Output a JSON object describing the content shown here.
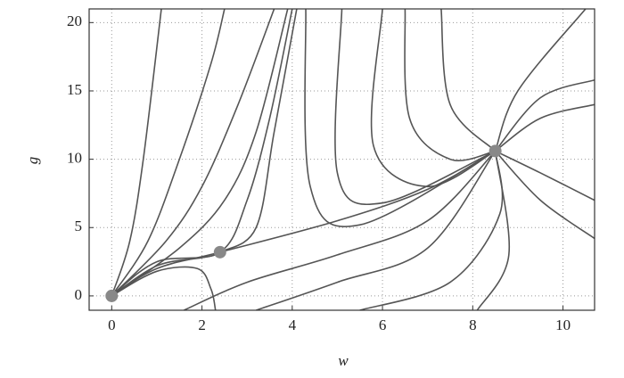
{
  "chart_data": {
    "type": "phase-portrait",
    "x_label": "w",
    "y_label": "g",
    "xlim": [
      -0.5,
      10.7
    ],
    "ylim": [
      -1.05,
      21
    ],
    "xticks": [
      0,
      2,
      4,
      6,
      8,
      10
    ],
    "yticks": [
      0,
      5,
      10,
      15,
      20
    ],
    "grid": true,
    "line_color": "#555555",
    "point_color": "#888888",
    "series": [
      {
        "x": [
          0,
          0.4,
          0.7,
          1.1
        ],
        "values": [
          0,
          4,
          10,
          21
        ]
      },
      {
        "x": [
          0,
          0.8,
          1.5,
          2.2,
          2.5
        ],
        "values": [
          0,
          4,
          10,
          17,
          21
        ]
      },
      {
        "x": [
          0,
          1.2,
          2,
          2.8,
          3.6
        ],
        "values": [
          0,
          4,
          8,
          14,
          21
        ]
      },
      {
        "x": [
          0,
          1.5,
          2.5,
          3.2,
          3.9
        ],
        "values": [
          0,
          3.5,
          7,
          12,
          21
        ]
      },
      {
        "x": [
          0,
          1,
          2.4,
          3,
          3.5,
          4
        ],
        "values": [
          0,
          2.5,
          3.2,
          7,
          13,
          21
        ]
      },
      {
        "x": [
          0,
          1,
          2,
          2.4,
          3.2,
          3.6,
          4.1
        ],
        "values": [
          0,
          2.2,
          2.8,
          3.2,
          5,
          12,
          21
        ]
      },
      {
        "x": [
          0,
          1,
          2.4,
          5,
          7,
          8.5
        ],
        "values": [
          0,
          2,
          3.2,
          5.5,
          7.8,
          10.6
        ]
      },
      {
        "x": [
          0,
          1,
          1.9,
          2.2,
          2.3
        ],
        "values": [
          0,
          1.8,
          2,
          0.5,
          -1.05
        ]
      },
      {
        "x": [
          1.6,
          3,
          5,
          7,
          8.5
        ],
        "values": [
          -1.05,
          1,
          3,
          5.5,
          10.6
        ]
      },
      {
        "x": [
          3.2,
          5,
          7,
          8.5
        ],
        "values": [
          -1.05,
          1,
          3.5,
          10.6
        ]
      },
      {
        "x": [
          5.5,
          7.5,
          8.6,
          8.5
        ],
        "values": [
          -1.05,
          1,
          6,
          10.6
        ]
      },
      {
        "x": [
          8.1,
          8.8,
          8.5
        ],
        "values": [
          -1.05,
          3,
          10.6
        ]
      },
      {
        "x": [
          4.3,
          4.4,
          5.5,
          8.5
        ],
        "values": [
          21,
          8,
          5.2,
          10.6
        ]
      },
      {
        "x": [
          5.1,
          5,
          6,
          8.5
        ],
        "values": [
          21,
          9,
          6.8,
          10.6
        ]
      },
      {
        "x": [
          6,
          5.8,
          7,
          8.5
        ],
        "values": [
          21,
          11,
          8,
          10.6
        ]
      },
      {
        "x": [
          6.5,
          6.6,
          7.5,
          8.5
        ],
        "values": [
          21,
          13,
          10,
          10.6
        ]
      },
      {
        "x": [
          7.3,
          7.5,
          8.5
        ],
        "values": [
          21,
          14,
          10.6
        ]
      },
      {
        "x": [
          10.5,
          9,
          8.5
        ],
        "values": [
          21,
          15,
          10.6
        ]
      },
      {
        "x": [
          10.7,
          9.5,
          8.5
        ],
        "values": [
          15.8,
          14.5,
          10.6
        ]
      },
      {
        "x": [
          10.7,
          9.5,
          8.5
        ],
        "values": [
          14,
          13,
          10.6
        ]
      },
      {
        "x": [
          10.7,
          9.5,
          8.5
        ],
        "values": [
          7,
          9,
          10.6
        ]
      },
      {
        "x": [
          10.7,
          9.5,
          8.5
        ],
        "values": [
          4.2,
          7,
          10.6
        ]
      }
    ],
    "points": {
      "x": [
        0,
        2.4,
        8.5
      ],
      "values": [
        0,
        3.2,
        10.6
      ]
    }
  }
}
